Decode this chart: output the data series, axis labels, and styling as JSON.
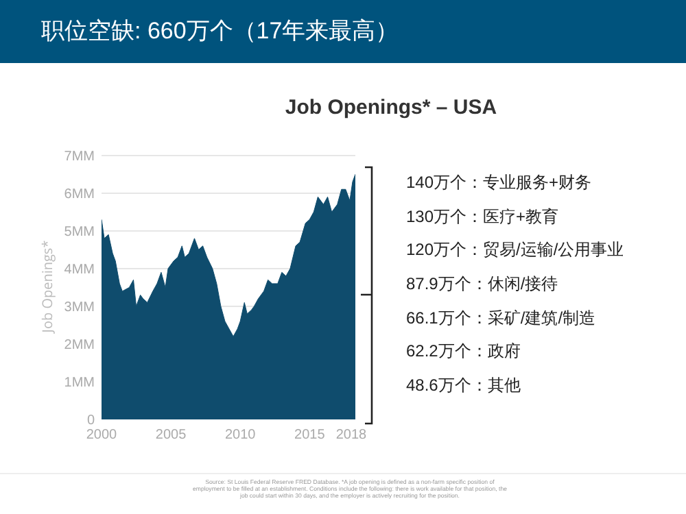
{
  "chart_data": {
    "type": "area",
    "title": "职位空缺: 660万个（17年来最高）",
    "subtitle": "Job Openings* – USA",
    "ylabel": "Job Openings*",
    "x": [
      2000.0,
      2000.2,
      2000.5,
      2000.8,
      2001.0,
      2001.3,
      2001.5,
      2002.0,
      2002.3,
      2002.5,
      2002.8,
      2003.0,
      2003.3,
      2003.7,
      2004.0,
      2004.3,
      2004.6,
      2004.8,
      2005.2,
      2005.5,
      2005.8,
      2006.0,
      2006.3,
      2006.7,
      2007.0,
      2007.3,
      2007.6,
      2008.0,
      2008.3,
      2008.6,
      2008.9,
      2009.2,
      2009.5,
      2009.8,
      2010.0,
      2010.3,
      2010.5,
      2010.8,
      2011.0,
      2011.3,
      2011.7,
      2012.0,
      2012.3,
      2012.7,
      2013.0,
      2013.3,
      2013.6,
      2014.0,
      2014.3,
      2014.7,
      2015.0,
      2015.3,
      2015.6,
      2016.0,
      2016.3,
      2016.6,
      2017.0,
      2017.3,
      2017.6,
      2017.9,
      2018.1,
      2018.3
    ],
    "series": [
      {
        "color": "#0f4c6d",
        "values": [
          5.3,
          4.8,
          4.9,
          4.4,
          4.2,
          3.6,
          3.4,
          3.5,
          3.7,
          3.0,
          3.3,
          3.2,
          3.1,
          3.4,
          3.6,
          3.9,
          3.5,
          4.0,
          4.2,
          4.3,
          4.6,
          4.3,
          4.4,
          4.8,
          4.5,
          4.6,
          4.3,
          4.0,
          3.6,
          3.0,
          2.6,
          2.4,
          2.2,
          2.4,
          2.6,
          3.1,
          2.8,
          2.9,
          3.0,
          3.2,
          3.4,
          3.7,
          3.6,
          3.6,
          3.9,
          3.8,
          4.0,
          4.6,
          4.7,
          5.2,
          5.3,
          5.5,
          5.9,
          5.7,
          5.9,
          5.5,
          5.7,
          6.1,
          6.1,
          5.8,
          6.3,
          6.5
        ]
      }
    ],
    "xlim": [
      2000,
      2018.3
    ],
    "xticks": [
      2000,
      2005,
      2010,
      2015,
      2018
    ],
    "ylim": [
      0,
      7.05
    ],
    "yticks": [
      0,
      {
        "value": 1,
        "label": "1MM"
      },
      {
        "value": 2,
        "label": "2MM"
      },
      {
        "value": 3,
        "label": "3MM"
      },
      {
        "value": 4,
        "label": "4MM"
      },
      {
        "value": 5,
        "label": "5MM"
      },
      {
        "value": 6,
        "label": "6MM"
      },
      {
        "value": 7,
        "label": "7MM"
      }
    ],
    "grid": "y",
    "annotations": [
      "140万个：专业服务+财务",
      "130万个：医疗+教育",
      "120万个：贸易/运输/公用事业",
      "87.9万个：休闲/接待",
      "66.1万个：采矿/建筑/制造",
      "62.2万个：政府",
      "48.6万个：其他",
      "Source: St Louis Federal Reserve FRED Database. *A job opening is defined as a non-farm specific position of employment to be filled at an establishment. Conditions include the following: there is work available for that position, the job could start within 30 days, and the employer is actively recruiting for the position."
    ]
  }
}
